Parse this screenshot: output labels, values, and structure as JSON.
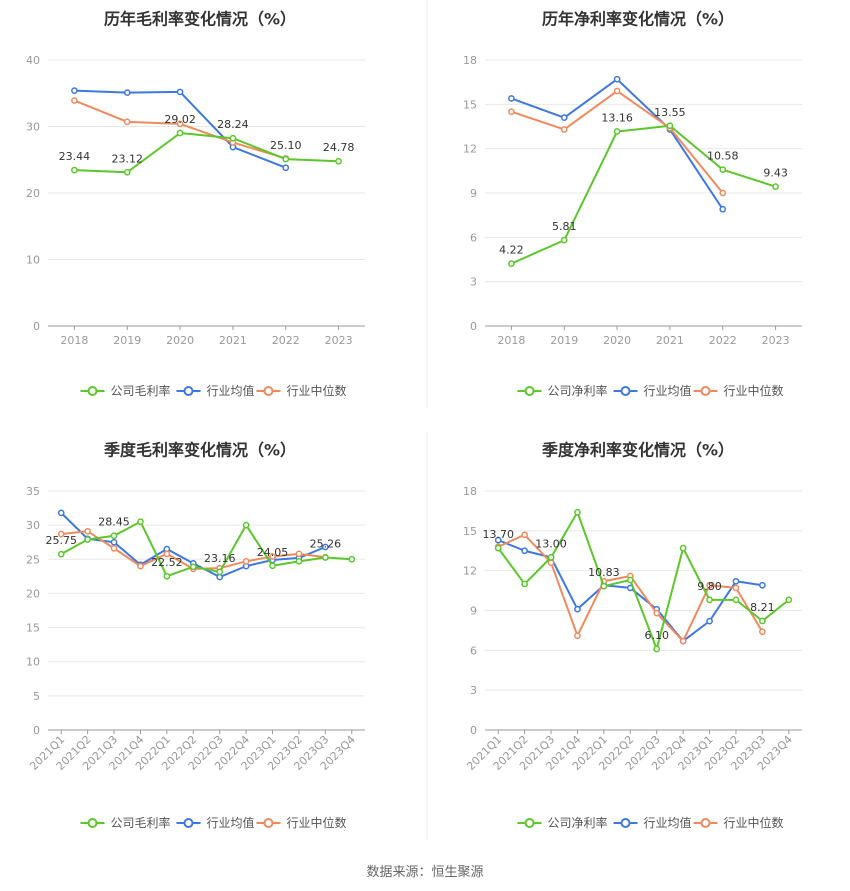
{
  "source": "数据来源：恒生聚源",
  "colors": {
    "company": "#5bc72a",
    "industry_avg": "#3d78e0",
    "industry_median": "#f08a5d",
    "grid": "#e8e8e8",
    "axis": "#999999"
  },
  "chart_data": [
    {
      "type": "line",
      "title": "历年毛利率变化情况（%）",
      "categories": [
        "2018",
        "2019",
        "2020",
        "2021",
        "2022",
        "2023"
      ],
      "ylim": [
        0,
        40
      ],
      "yticks": [
        0,
        10,
        20,
        30,
        40
      ],
      "grid": true,
      "legend_position": "bottom",
      "series": [
        {
          "name": "公司毛利率",
          "key": "company",
          "values": [
            23.44,
            23.12,
            29.02,
            28.24,
            25.1,
            24.78
          ],
          "labels": [
            "23.44",
            "23.12",
            "29.02",
            "28.24",
            "25.10",
            "24.78"
          ]
        },
        {
          "name": "行业均值",
          "key": "industry_avg",
          "values": [
            35.4,
            35.1,
            35.2,
            26.9,
            23.8,
            null
          ]
        },
        {
          "name": "行业中位数",
          "key": "industry_median",
          "values": [
            33.9,
            30.7,
            30.4,
            27.6,
            25.2,
            null
          ]
        }
      ]
    },
    {
      "type": "line",
      "title": "历年净利率变化情况（%）",
      "categories": [
        "2018",
        "2019",
        "2020",
        "2021",
        "2022",
        "2023"
      ],
      "ylim": [
        0,
        18
      ],
      "yticks": [
        0,
        3,
        6,
        9,
        12,
        15,
        18
      ],
      "grid": true,
      "legend_position": "bottom",
      "series": [
        {
          "name": "公司净利率",
          "key": "company",
          "values": [
            4.22,
            5.81,
            13.16,
            13.55,
            10.58,
            9.43
          ],
          "labels": [
            "4.22",
            "5.81",
            "13.16",
            "13.55",
            "10.58",
            "9.43"
          ]
        },
        {
          "name": "行业均值",
          "key": "industry_avg",
          "values": [
            15.4,
            14.1,
            16.7,
            13.3,
            7.9,
            null
          ]
        },
        {
          "name": "行业中位数",
          "key": "industry_median",
          "values": [
            14.5,
            13.3,
            15.9,
            13.4,
            9.0,
            null
          ]
        }
      ]
    },
    {
      "type": "line",
      "title": "季度毛利率变化情况（%）",
      "categories": [
        "2021Q1",
        "2021Q2",
        "2021Q3",
        "2021Q4",
        "2022Q1",
        "2022Q2",
        "2022Q3",
        "2022Q4",
        "2023Q1",
        "2023Q2",
        "2023Q3",
        "2023Q4"
      ],
      "ylim": [
        0,
        35
      ],
      "yticks": [
        0,
        5,
        10,
        15,
        20,
        25,
        30,
        35
      ],
      "grid": true,
      "legend_position": "bottom",
      "series": [
        {
          "name": "公司毛利率",
          "key": "company",
          "values": [
            25.75,
            27.9,
            28.45,
            30.5,
            22.52,
            23.9,
            23.16,
            30.0,
            24.05,
            24.7,
            25.26,
            25.0
          ],
          "labels": [
            "25.75",
            "",
            "28.45",
            "",
            "22.52",
            "",
            "23.16",
            "",
            "24.05",
            "",
            "25.26",
            ""
          ]
        },
        {
          "name": "行业均值",
          "key": "industry_avg",
          "values": [
            31.8,
            28.0,
            27.5,
            24.2,
            26.5,
            24.4,
            22.4,
            24.0,
            24.9,
            25.2,
            26.8,
            null
          ]
        },
        {
          "name": "行业中位数",
          "key": "industry_median",
          "values": [
            28.7,
            29.1,
            26.6,
            24.0,
            25.8,
            23.6,
            23.7,
            24.7,
            25.4,
            25.8,
            25.3,
            null
          ]
        }
      ]
    },
    {
      "type": "line",
      "title": "季度净利率变化情况（%）",
      "categories": [
        "2021Q1",
        "2021Q2",
        "2021Q3",
        "2021Q4",
        "2022Q1",
        "2022Q2",
        "2022Q3",
        "2022Q4",
        "2023Q1",
        "2023Q2",
        "2023Q3",
        "2023Q4"
      ],
      "ylim": [
        0,
        18
      ],
      "yticks": [
        0,
        3,
        6,
        9,
        12,
        15,
        18
      ],
      "grid": true,
      "legend_position": "bottom",
      "series": [
        {
          "name": "公司净利率",
          "key": "company",
          "values": [
            13.7,
            11.0,
            13.0,
            16.4,
            10.83,
            11.3,
            6.1,
            13.7,
            9.8,
            9.8,
            8.21,
            9.8
          ],
          "labels": [
            "13.70",
            "",
            "13.00",
            "",
            "10.83",
            "",
            "6.10",
            "",
            "9.80",
            "",
            "8.21",
            ""
          ]
        },
        {
          "name": "行业均值",
          "key": "industry_avg",
          "values": [
            14.3,
            13.5,
            13.0,
            9.1,
            10.9,
            10.7,
            9.1,
            6.7,
            8.2,
            11.2,
            10.9,
            null
          ]
        },
        {
          "name": "行业中位数",
          "key": "industry_median",
          "values": [
            13.8,
            14.7,
            12.6,
            7.1,
            11.2,
            11.6,
            8.8,
            6.7,
            10.9,
            10.7,
            7.4,
            null
          ]
        }
      ]
    }
  ]
}
